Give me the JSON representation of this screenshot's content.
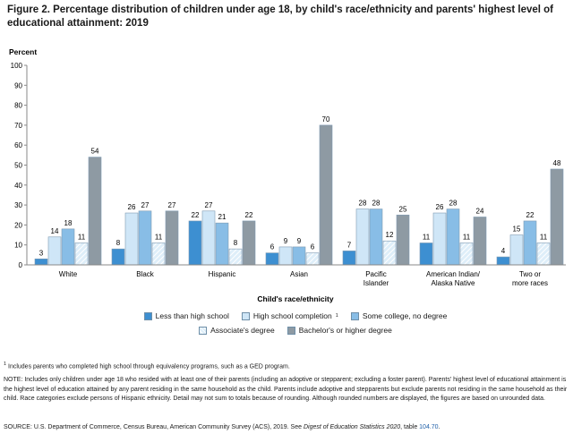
{
  "figure": {
    "title": "Figure 2. Percentage distribution of children under age 18, by child's race/ethnicity and parents' highest level of educational attainment: 2019"
  },
  "chart_data": {
    "type": "bar",
    "ylabel": "Percent",
    "xlabel": "Child's race/ethnicity",
    "ylim": [
      0,
      100
    ],
    "yticks": [
      0,
      10,
      20,
      30,
      40,
      50,
      60,
      70,
      80,
      90,
      100
    ],
    "grid": false,
    "legend_position": "bottom",
    "categories": [
      [
        "White"
      ],
      [
        "Black"
      ],
      [
        "Hispanic"
      ],
      [
        "Asian"
      ],
      [
        "Pacific",
        "Islander"
      ],
      [
        "American Indian/",
        "Alaska Native"
      ],
      [
        "Two or",
        "more races"
      ]
    ],
    "series": [
      {
        "name": "Less than high school",
        "color": "#3d8fd1",
        "values": [
          3,
          8,
          22,
          6,
          7,
          11,
          4
        ]
      },
      {
        "name": "High school completion",
        "footnote_mark": "1",
        "color": "#cfe6f7",
        "values": [
          14,
          26,
          27,
          9,
          28,
          26,
          15
        ]
      },
      {
        "name": "Some college, no degree",
        "color": "#88bde6",
        "values": [
          18,
          27,
          21,
          9,
          28,
          28,
          22
        ]
      },
      {
        "name": "Associate's degree",
        "color": "#deeef9",
        "pattern": "hatch",
        "values": [
          11,
          11,
          8,
          6,
          12,
          11,
          11
        ]
      },
      {
        "name": "Bachelor's or higher degree",
        "color": "#8e9aa3",
        "values": [
          54,
          27,
          22,
          70,
          25,
          24,
          48
        ]
      }
    ]
  },
  "notes": {
    "footnote_mark": "1",
    "footnote": " Includes parents who completed high school through equivalency programs, such as a GED program.",
    "note": "NOTE: Includes only children under age 18 who resided with at least one of their parents (including an adoptive or stepparent; excluding a foster parent). Parents' highest level of educational attainment is the highest level of education attained by any parent residing in the same household as the child. Parents include adoptive and stepparents but exclude parents not residing in the same household as their child. Race categories exclude persons of Hispanic ethnicity. Detail may not sum to totals because of rounding. Although rounded numbers are displayed, the figures are based on unrounded data.",
    "source_prefix": "SOURCE: U.S. Department of Commerce, Census Bureau, American Community Survey (ACS), 2019. See ",
    "source_italic": "Digest of Education Statistics 2020",
    "source_mid": ", table ",
    "source_link": "104.70",
    "source_end": "."
  }
}
